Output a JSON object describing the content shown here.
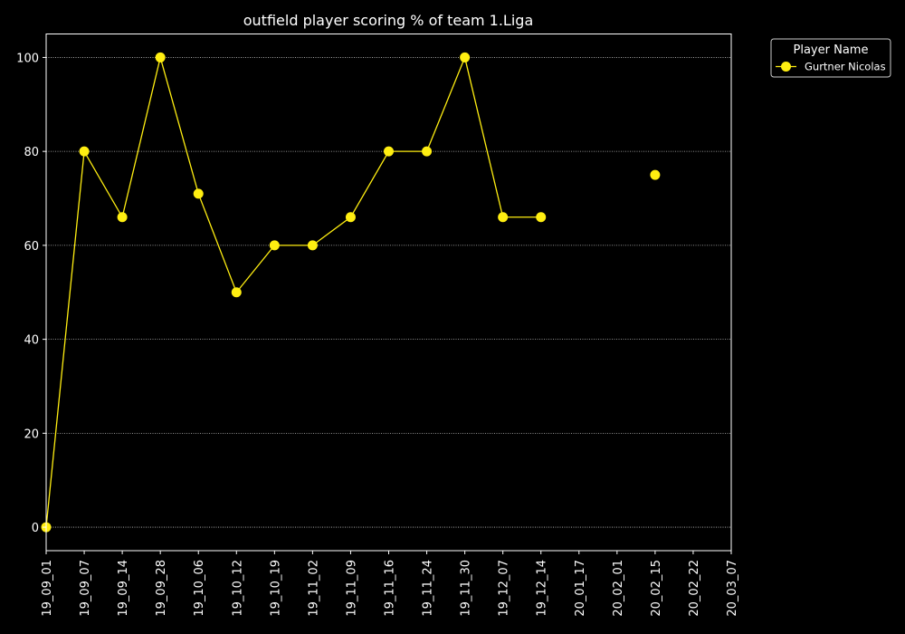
{
  "chart_data": {
    "type": "line",
    "title": "outfield player scoring % of team 1.Liga",
    "xlabel": "",
    "ylabel": "",
    "categories": [
      "19_09_01",
      "19_09_07",
      "19_09_14",
      "19_09_28",
      "19_10_06",
      "19_10_12",
      "19_10_19",
      "19_11_02",
      "19_11_09",
      "19_11_16",
      "19_11_24",
      "19_11_30",
      "19_12_07",
      "19_12_14",
      "20_01_17",
      "20_02_01",
      "20_02_15",
      "20_02_22",
      "20_03_07"
    ],
    "series": [
      {
        "name": "Gurtner Nicolas",
        "color": "#ffee11",
        "values": [
          0,
          80,
          66,
          100,
          71,
          50,
          60,
          60,
          66,
          80,
          80,
          100,
          66,
          66,
          null,
          null,
          75,
          null,
          null
        ]
      }
    ],
    "ylim": [
      -5,
      105
    ],
    "yticks": [
      0,
      20,
      40,
      60,
      80,
      100
    ],
    "grid": "horizontal dotted",
    "legend": {
      "title": "Player Name",
      "position": "outside-top-right"
    },
    "colors": {
      "background": "#000000",
      "foreground": "#ffffff",
      "grid": "#bbbbbb"
    }
  }
}
